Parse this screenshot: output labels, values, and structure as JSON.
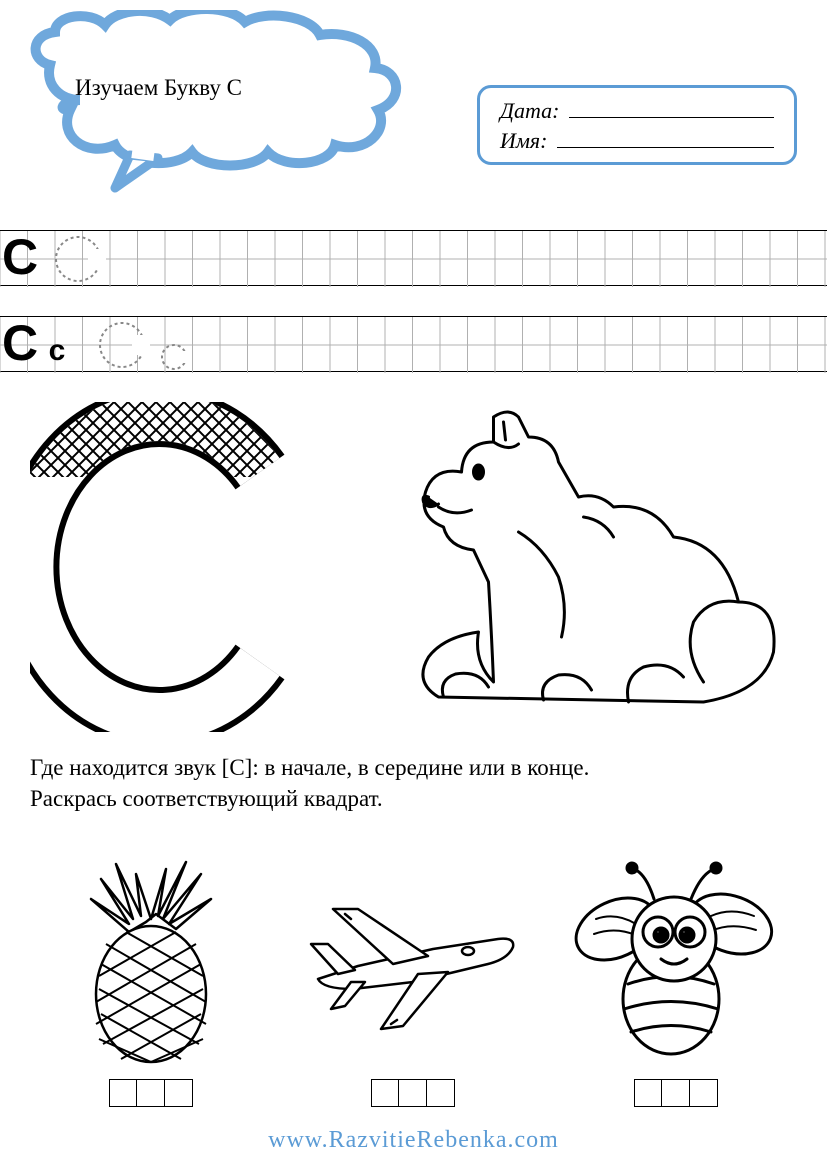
{
  "title": "Изучаем Букву С",
  "info": {
    "date_label": "Дата:",
    "name_label": "Имя:"
  },
  "colors": {
    "accent": "#5b9bd5",
    "cloud_fill": "#6fa8dc",
    "line": "#000000",
    "grid": "#b0b0b0"
  },
  "tracing": {
    "row1": {
      "solid": "С",
      "dotted": "С"
    },
    "row2": {
      "solid_big": "С",
      "solid_small": "с",
      "dotted_big": "С",
      "dotted_small": "с"
    }
  },
  "big_letter": "С",
  "instruction_line1": "Где находится звук [С]: в начале, в середине или в конце.",
  "instruction_line2": "Раскрась соответствующий квадрат.",
  "pictures": [
    {
      "name": "pineapple",
      "label": "ананас"
    },
    {
      "name": "airplane",
      "label": "самолёт"
    },
    {
      "name": "bee",
      "label": "оса"
    }
  ],
  "footer": "www.RazvitieRebenka.com"
}
